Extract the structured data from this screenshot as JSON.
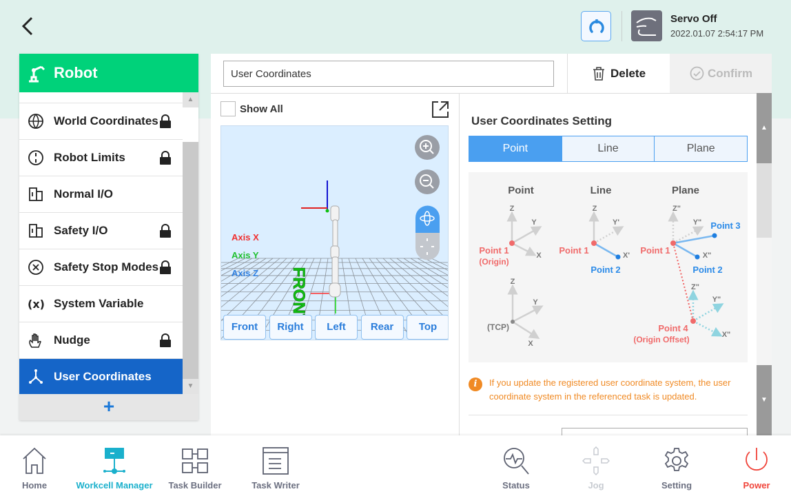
{
  "header": {
    "servo_status": "Servo Off",
    "datetime": "2022.01.07 2:54:17 PM"
  },
  "sidebar": {
    "title": "Robot",
    "add_label": "+",
    "items": [
      {
        "label": "World Coordinates",
        "locked": true,
        "icon": "globe-icon"
      },
      {
        "label": "Robot Limits",
        "locked": true,
        "icon": "limit-icon"
      },
      {
        "label": "Normal I/O",
        "locked": false,
        "icon": "io-icon"
      },
      {
        "label": "Safety I/O",
        "locked": true,
        "icon": "io-icon"
      },
      {
        "label": "Safety Stop Modes",
        "locked": true,
        "icon": "stop-icon"
      },
      {
        "label": "System Variable",
        "locked": false,
        "icon": "variable-icon"
      },
      {
        "label": "Nudge",
        "locked": true,
        "icon": "hand-icon"
      },
      {
        "label": "User Coordinates",
        "locked": false,
        "selected": true,
        "icon": "axes-icon"
      }
    ]
  },
  "main": {
    "name_value": "User Coordinates",
    "delete_label": "Delete",
    "confirm_label": "Confirm",
    "show_all": "Show All"
  },
  "viewer": {
    "axis_x": "Axis X",
    "axis_y": "Axis Y",
    "axis_z": "Axis Z",
    "front_text": "FRONT",
    "views": [
      "Front",
      "Right",
      "Left",
      "Rear",
      "Top"
    ]
  },
  "settings": {
    "title": "User Coordinates Setting",
    "tabs": [
      "Point",
      "Line",
      "Plane"
    ],
    "active_tab": "Point",
    "diagram": {
      "point_title": "Point",
      "line_title": "Line",
      "plane_title": "Plane",
      "z": "Z",
      "y": "Y",
      "x": "X",
      "y1": "Y'",
      "x1": "X'",
      "z2": "Z\"",
      "y2": "Y\"",
      "x2": "X\"",
      "point1": "Point 1",
      "origin": "(Origin)",
      "point2": "Point 2",
      "point3": "Point 3",
      "point4": "Point 4",
      "origin_offset": "(Origin Offset)",
      "tcp": "(TCP)"
    },
    "info": "If you update the registered user coordinate system, the user coordinate system in the referenced task is updated."
  },
  "colors": {
    "accent": "#1565c8",
    "green": "#00d27a",
    "warning": "#f08a24",
    "power": "#f0443a",
    "active_nav": "#1ab0cc"
  },
  "nav": {
    "home": "Home",
    "workcell": "Workcell Manager",
    "task_builder": "Task Builder",
    "task_writer": "Task Writer",
    "status": "Status",
    "jog": "Jog",
    "setting": "Setting",
    "power": "Power"
  }
}
